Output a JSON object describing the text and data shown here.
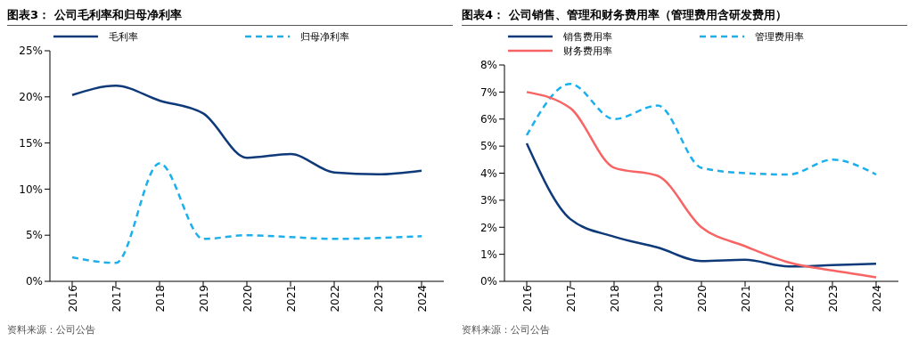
{
  "chart_data": [
    {
      "type": "line",
      "title": "图表3：  公司毛利率和归母净利率",
      "categories": [
        "2016",
        "2017",
        "2018",
        "2019",
        "2020",
        "2021",
        "2022",
        "2023",
        "2024"
      ],
      "series": [
        {
          "name": "毛利率",
          "color": "#0e3a7a",
          "values": [
            20.2,
            21.2,
            19.6,
            18.2,
            13.4,
            13.8,
            11.8,
            11.6,
            12.0
          ]
        },
        {
          "name": "归母净利率",
          "color": "#1ab0ee",
          "line_style": "dashed",
          "values": [
            2.6,
            2.0,
            12.8,
            4.6,
            5.0,
            4.8,
            4.6,
            4.7,
            4.9
          ]
        }
      ],
      "ylim": [
        0,
        25
      ],
      "yticks": [
        {
          "value": 0,
          "label": "0%"
        },
        {
          "value": 5,
          "label": "5%"
        },
        {
          "value": 10,
          "label": "10%"
        },
        {
          "value": 15,
          "label": "15%"
        },
        {
          "value": 20,
          "label": "20%"
        },
        {
          "value": 25,
          "label": "25%"
        }
      ],
      "grid": false,
      "legend": "top",
      "marker": "none",
      "annotations": [
        "资料来源：公司公告"
      ]
    },
    {
      "type": "line",
      "title": "图表4：  公司销售、管理和财务费用率（管理费用含研发费用）",
      "categories": [
        "2016",
        "2017",
        "2018",
        "2019",
        "2020",
        "2021",
        "2022",
        "2023",
        "2024"
      ],
      "series": [
        {
          "name": "销售费用率",
          "color": "#0e3a7a",
          "values": [
            5.1,
            2.3,
            1.65,
            1.25,
            0.75,
            0.8,
            0.55,
            0.6,
            0.65
          ]
        },
        {
          "name": "管理费用率",
          "color": "#1ab0ee",
          "line_style": "dashed",
          "values": [
            5.4,
            7.3,
            6.0,
            6.5,
            4.2,
            4.0,
            3.95,
            4.5,
            3.95
          ]
        },
        {
          "name": "财务费用率",
          "color": "#f86464",
          "values": [
            7.0,
            6.4,
            4.2,
            3.9,
            2.0,
            1.3,
            0.7,
            0.4,
            0.15
          ]
        }
      ],
      "ylim": [
        0,
        8
      ],
      "yticks": [
        {
          "value": 0,
          "label": "0%"
        },
        {
          "value": 1,
          "label": "1%"
        },
        {
          "value": 2,
          "label": "2%"
        },
        {
          "value": 3,
          "label": "3%"
        },
        {
          "value": 4,
          "label": "4%"
        },
        {
          "value": 5,
          "label": "5%"
        },
        {
          "value": 6,
          "label": "6%"
        },
        {
          "value": 7,
          "label": "7%"
        },
        {
          "value": 8,
          "label": "8%"
        }
      ],
      "grid": false,
      "legend": "top",
      "marker": "none",
      "annotations": [
        "资料来源：公司公告"
      ]
    }
  ]
}
